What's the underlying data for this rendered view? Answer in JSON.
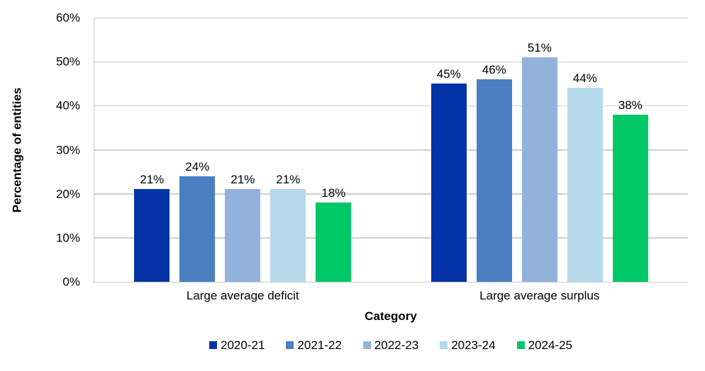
{
  "chart_data": {
    "type": "bar",
    "title": "",
    "xlabel": "Category",
    "ylabel": "Percentage of entities",
    "categories": [
      "Large average deficit",
      "Large average surplus"
    ],
    "series": [
      {
        "name": "2020-21",
        "color": "#0433a7",
        "values": [
          21,
          45
        ]
      },
      {
        "name": "2021-22",
        "color": "#4a80c2",
        "values": [
          24,
          46
        ]
      },
      {
        "name": "2022-23",
        "color": "#92b2dc",
        "values": [
          21,
          51
        ]
      },
      {
        "name": "2023-24",
        "color": "#b7d9ec",
        "values": [
          21,
          44
        ]
      },
      {
        "name": "2024-25",
        "color": "#02c766",
        "values": [
          18,
          38
        ]
      }
    ],
    "value_labels": [
      [
        "21%",
        "24%",
        "21%",
        "21%",
        "18%"
      ],
      [
        "45%",
        "46%",
        "51%",
        "44%",
        "38%"
      ]
    ],
    "ylim": [
      0,
      60
    ],
    "yticks": [
      "0%",
      "10%",
      "20%",
      "30%",
      "40%",
      "50%",
      "60%"
    ],
    "grid": "horizontal",
    "gridline_color": "#cfcfcf",
    "legend_position": "bottom"
  }
}
